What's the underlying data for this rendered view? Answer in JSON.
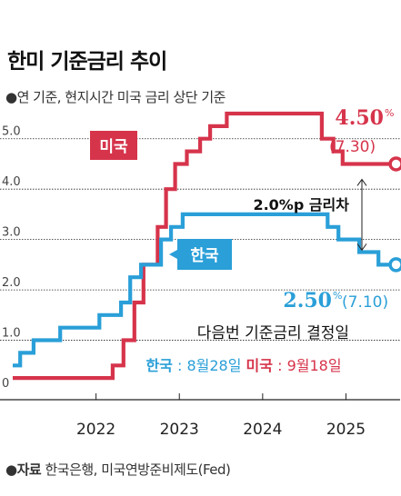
{
  "header": {
    "title": "한미 기준금리 추이",
    "subtitle": "●연 기준, 현지시간 미국 금리 상단 기준"
  },
  "footer": {
    "source_label": "●자료",
    "source_text": "한국은행, 미국연방준비제도(Fed)"
  },
  "colors": {
    "us": "#d6344b",
    "korea": "#2a9fd8",
    "grid": "#222222"
  },
  "chart_data": {
    "type": "line",
    "title": "한미 기준금리 추이",
    "subtitle": "●연 기준, 현지시간 미국 금리 상단 기준",
    "ylim": [
      0,
      5.5
    ],
    "y_ticks": [
      "0",
      "1.0",
      "2.0",
      "3.0",
      "4.0",
      "5.0"
    ],
    "x_ticks": [
      "2022",
      "2023",
      "2024",
      "2025"
    ],
    "series": [
      {
        "name": "미국",
        "label": "미국",
        "color": "#d6344b",
        "end_value_label": "4.50",
        "end_value_unit": "%",
        "end_date_label": "(7.30)",
        "points": [
          [
            2021.0,
            0.25
          ],
          [
            2022.2,
            0.5
          ],
          [
            2022.33,
            1.0
          ],
          [
            2022.46,
            1.75
          ],
          [
            2022.57,
            2.5
          ],
          [
            2022.74,
            3.25
          ],
          [
            2022.84,
            4.0
          ],
          [
            2022.95,
            4.5
          ],
          [
            2023.09,
            4.75
          ],
          [
            2023.25,
            5.0
          ],
          [
            2023.37,
            5.25
          ],
          [
            2023.57,
            5.5
          ],
          [
            2024.71,
            5.0
          ],
          [
            2024.85,
            4.75
          ],
          [
            2024.96,
            4.5
          ],
          [
            2025.58,
            4.5
          ]
        ]
      },
      {
        "name": "한국",
        "label": "한국",
        "color": "#2a9fd8",
        "end_value_label": "2.50",
        "end_value_unit": "%",
        "end_date_label": "(7.10)",
        "points": [
          [
            2021.0,
            0.5
          ],
          [
            2021.09,
            0.75
          ],
          [
            2021.25,
            1.0
          ],
          [
            2021.57,
            1.25
          ],
          [
            2022.04,
            1.5
          ],
          [
            2022.3,
            1.75
          ],
          [
            2022.41,
            2.25
          ],
          [
            2022.54,
            2.5
          ],
          [
            2022.78,
            3.0
          ],
          [
            2022.9,
            3.25
          ],
          [
            2023.04,
            3.5
          ],
          [
            2024.78,
            3.25
          ],
          [
            2024.91,
            3.0
          ],
          [
            2025.16,
            2.75
          ],
          [
            2025.39,
            2.5
          ],
          [
            2025.58,
            2.5
          ]
        ]
      }
    ],
    "gap_label": "2.0%p 금리차",
    "next_meeting": {
      "heading": "다음번 기준금리 결정일",
      "korea_label": "한국",
      "korea_date": "8월28일",
      "us_label": "미국",
      "us_date": "9월18일",
      "separator": " : "
    }
  }
}
